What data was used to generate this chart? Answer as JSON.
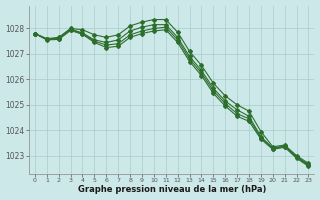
{
  "background_color": "#cce8e8",
  "grid_color": "#aacccc",
  "line_color": "#2d6e2d",
  "marker_color": "#2d6e2d",
  "title": "Graphe pression niveau de la mer (hPa)",
  "ylabel_ticks": [
    1023,
    1024,
    1025,
    1026,
    1027,
    1028
  ],
  "xlim": [
    -0.5,
    23.5
  ],
  "ylim": [
    1022.3,
    1028.9
  ],
  "x_ticks": [
    0,
    1,
    2,
    3,
    4,
    5,
    6,
    7,
    8,
    9,
    10,
    11,
    12,
    13,
    14,
    15,
    16,
    17,
    18,
    19,
    20,
    21,
    22,
    23
  ],
  "line1": [
    1027.8,
    1027.6,
    1027.65,
    1028.0,
    1027.95,
    1027.75,
    1027.65,
    1027.75,
    1028.1,
    1028.25,
    1028.35,
    1028.35,
    1027.85,
    1027.1,
    1026.55,
    1025.85,
    1025.35,
    1025.0,
    1024.75,
    1023.95,
    1023.35,
    1023.42,
    1023.0,
    1022.7
  ],
  "line2": [
    1027.8,
    1027.58,
    1027.62,
    1027.98,
    1027.82,
    1027.55,
    1027.45,
    1027.55,
    1027.9,
    1028.05,
    1028.15,
    1028.15,
    1027.65,
    1026.9,
    1026.35,
    1025.65,
    1025.15,
    1024.8,
    1024.55,
    1023.75,
    1023.3,
    1023.38,
    1022.96,
    1022.65
  ],
  "line3": [
    1027.8,
    1027.57,
    1027.6,
    1027.95,
    1027.8,
    1027.5,
    1027.35,
    1027.4,
    1027.75,
    1027.9,
    1028.0,
    1028.05,
    1027.55,
    1026.8,
    1026.25,
    1025.55,
    1025.05,
    1024.65,
    1024.45,
    1023.7,
    1023.28,
    1023.36,
    1022.94,
    1022.62
  ],
  "line4": [
    1027.8,
    1027.55,
    1027.57,
    1027.92,
    1027.77,
    1027.45,
    1027.25,
    1027.3,
    1027.65,
    1027.8,
    1027.9,
    1027.95,
    1027.45,
    1026.7,
    1026.15,
    1025.45,
    1024.95,
    1024.55,
    1024.35,
    1023.65,
    1023.25,
    1023.33,
    1022.9,
    1022.58
  ]
}
